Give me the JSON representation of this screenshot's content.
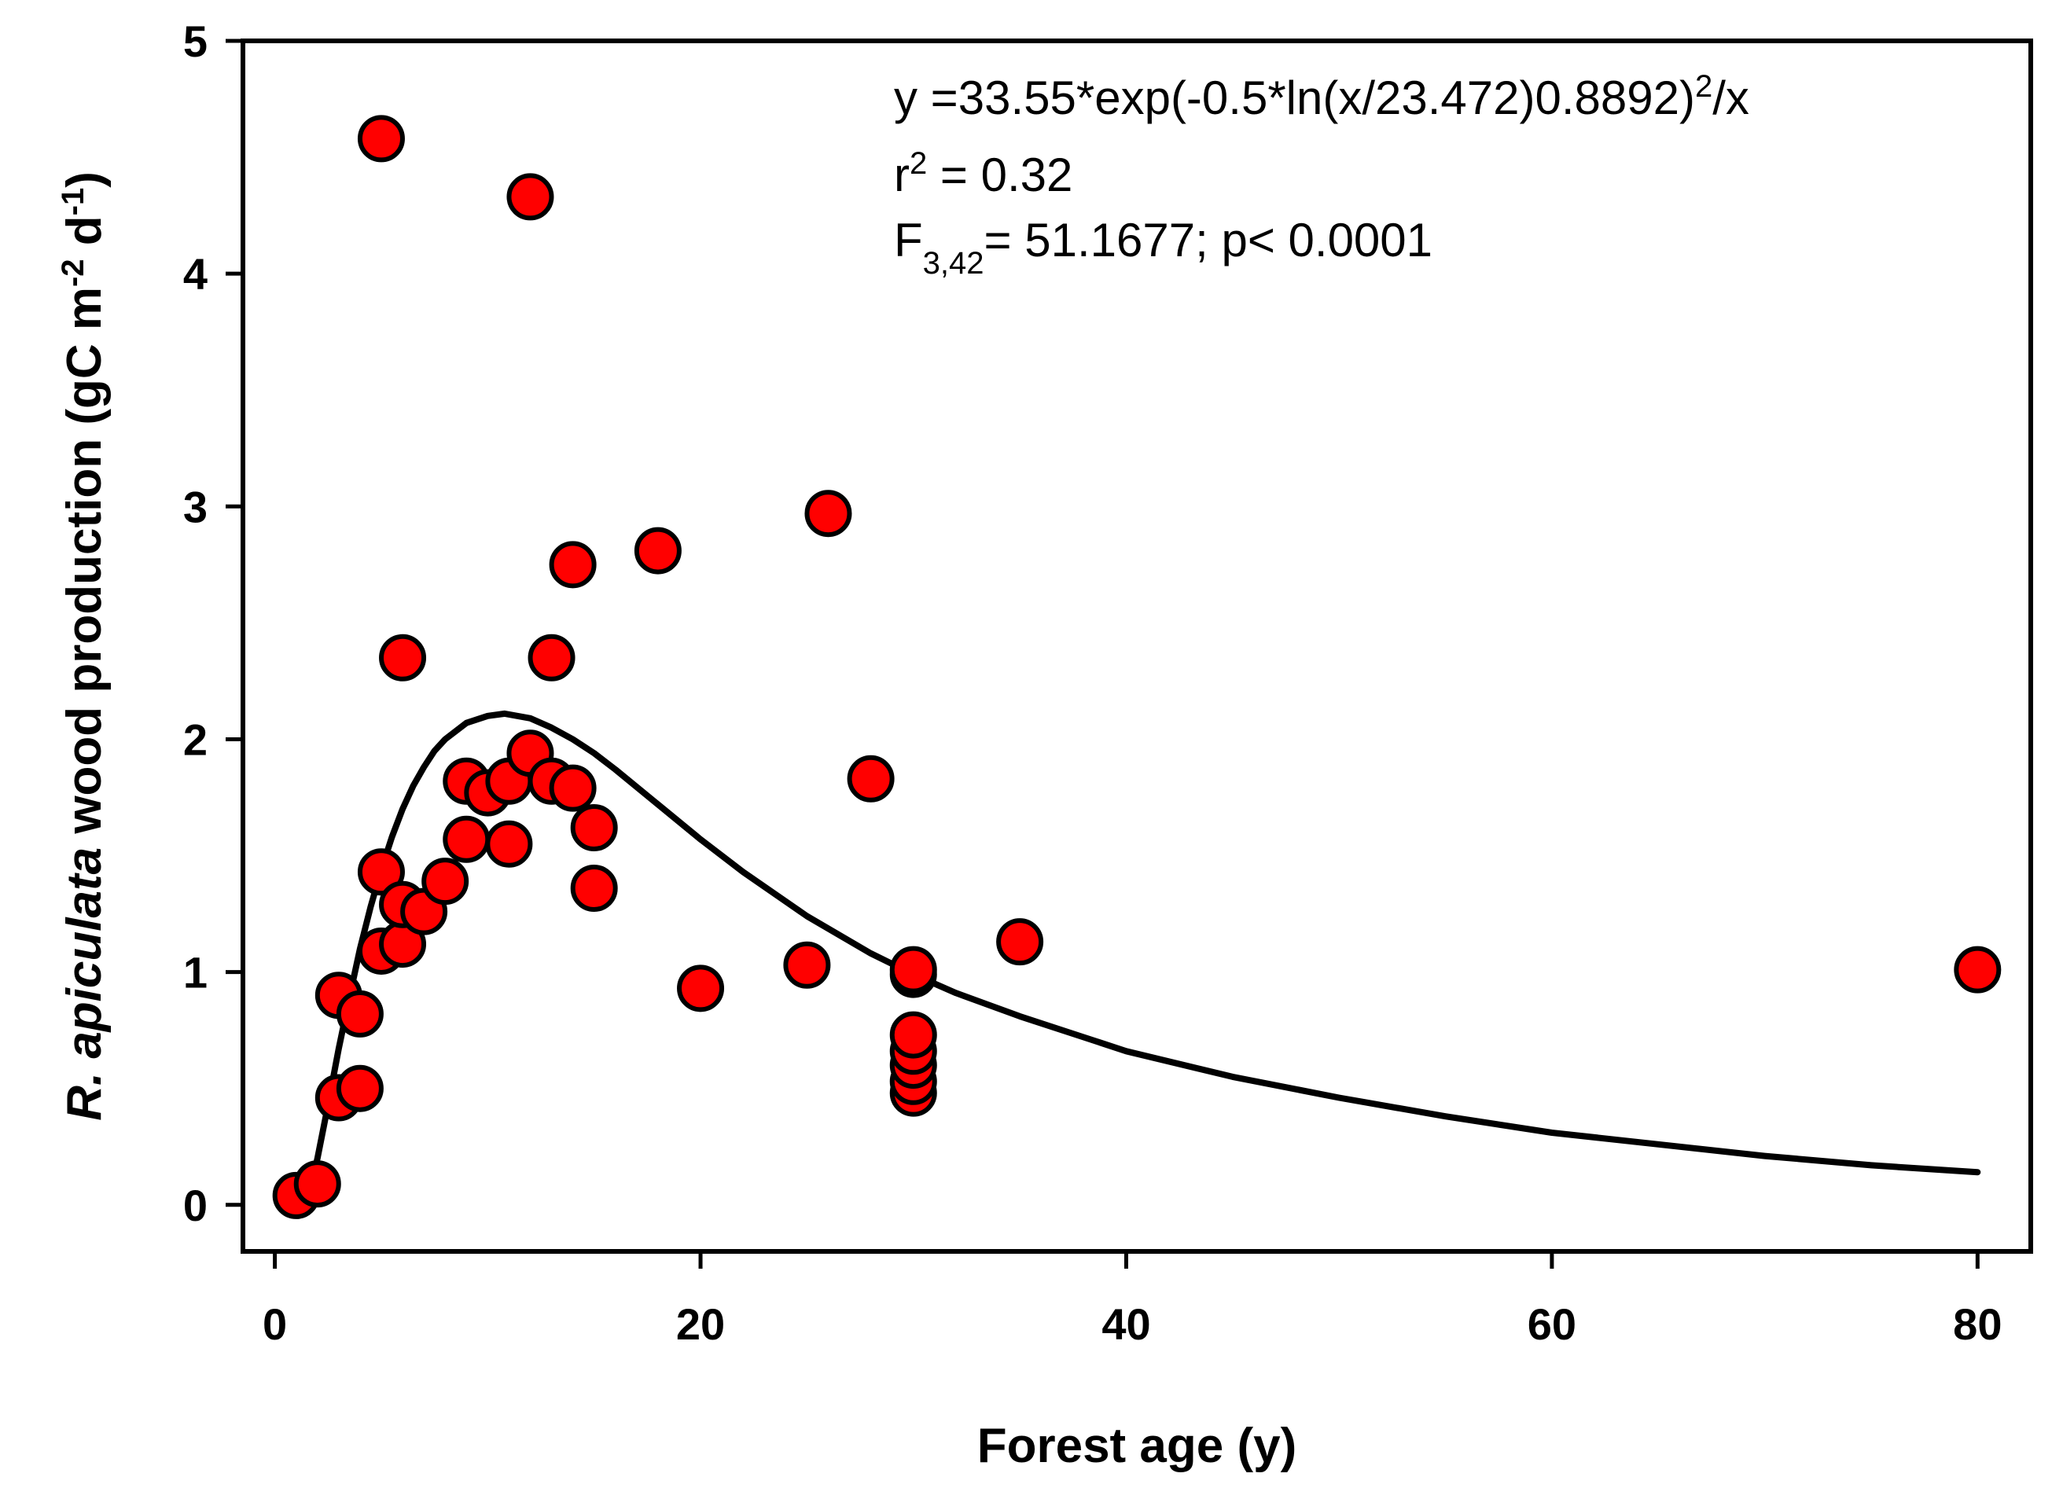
{
  "chart_data": {
    "type": "scatter",
    "title": "",
    "xlabel": "Forest age (y)",
    "ylabel": {
      "species": "R. apiculata",
      "rest": " wood production (gC m",
      "sup1": "-2",
      "mid": " d",
      "sup2": "-1",
      "end": ")"
    },
    "xlim": [
      -1.5,
      82.5
    ],
    "ylim": [
      -0.2,
      5
    ],
    "xticks": [
      0,
      20,
      40,
      60,
      80
    ],
    "yticks": [
      0,
      1,
      2,
      3,
      4,
      5
    ],
    "grid": false,
    "legend": "none",
    "marker_color": "#ff0000",
    "marker_edge_color": "#000000",
    "line_color": "#000000",
    "points": [
      {
        "x": 1,
        "y": 0.04
      },
      {
        "x": 2,
        "y": 0.09
      },
      {
        "x": 3,
        "y": 0.46
      },
      {
        "x": 3,
        "y": 0.9
      },
      {
        "x": 4,
        "y": 0.5
      },
      {
        "x": 4,
        "y": 0.82
      },
      {
        "x": 5,
        "y": 1.09
      },
      {
        "x": 5,
        "y": 1.43
      },
      {
        "x": 5,
        "y": 4.58
      },
      {
        "x": 6,
        "y": 1.12
      },
      {
        "x": 6,
        "y": 1.29
      },
      {
        "x": 6,
        "y": 2.35
      },
      {
        "x": 7,
        "y": 1.26
      },
      {
        "x": 8,
        "y": 1.39
      },
      {
        "x": 9,
        "y": 1.57
      },
      {
        "x": 9,
        "y": 1.82
      },
      {
        "x": 10,
        "y": 1.77
      },
      {
        "x": 11,
        "y": 1.55
      },
      {
        "x": 11,
        "y": 1.82
      },
      {
        "x": 12,
        "y": 1.94
      },
      {
        "x": 12,
        "y": 4.33
      },
      {
        "x": 13,
        "y": 1.82
      },
      {
        "x": 13,
        "y": 2.35
      },
      {
        "x": 14,
        "y": 1.79
      },
      {
        "x": 14,
        "y": 2.75
      },
      {
        "x": 15,
        "y": 1.36
      },
      {
        "x": 15,
        "y": 1.62
      },
      {
        "x": 18,
        "y": 2.81
      },
      {
        "x": 20,
        "y": 0.93
      },
      {
        "x": 25,
        "y": 1.03
      },
      {
        "x": 26,
        "y": 2.97
      },
      {
        "x": 28,
        "y": 1.83
      },
      {
        "x": 30,
        "y": 0.48
      },
      {
        "x": 30,
        "y": 0.53
      },
      {
        "x": 30,
        "y": 0.6
      },
      {
        "x": 30,
        "y": 0.66
      },
      {
        "x": 30,
        "y": 0.73
      },
      {
        "x": 30,
        "y": 0.99
      },
      {
        "x": 30,
        "y": 1.01
      },
      {
        "x": 35,
        "y": 1.13
      },
      {
        "x": 80,
        "y": 1.01
      }
    ],
    "fit_curve": {
      "x": [
        1.8,
        2,
        2.5,
        3,
        3.5,
        4,
        4.5,
        5,
        5.5,
        6,
        6.5,
        7,
        7.5,
        8,
        9,
        10,
        10.8,
        12,
        13,
        14,
        15,
        16,
        18,
        20,
        22,
        25,
        28,
        30,
        32,
        35,
        38,
        40,
        45,
        50,
        55,
        60,
        65,
        70,
        75,
        80
      ],
      "y": [
        0.12,
        0.2,
        0.43,
        0.67,
        0.89,
        1.1,
        1.28,
        1.44,
        1.58,
        1.7,
        1.8,
        1.88,
        1.95,
        2.0,
        2.07,
        2.1,
        2.11,
        2.09,
        2.05,
        2.0,
        1.94,
        1.87,
        1.72,
        1.57,
        1.43,
        1.24,
        1.08,
        0.99,
        0.91,
        0.81,
        0.72,
        0.66,
        0.55,
        0.46,
        0.38,
        0.31,
        0.26,
        0.21,
        0.17,
        0.14
      ]
    },
    "annotations": {
      "equation_main": "y =33.55*exp(-0.5*ln(x/23.472)0.8892)",
      "equation_sup": "2",
      "equation_tail": "/x",
      "r2_prefix": "r",
      "r2_sup": "2",
      "r2_suffix": " = 0.32",
      "f_prefix": "F",
      "f_sub": "3,42",
      "f_suffix": "= 51.1677; p< 0.0001"
    }
  }
}
